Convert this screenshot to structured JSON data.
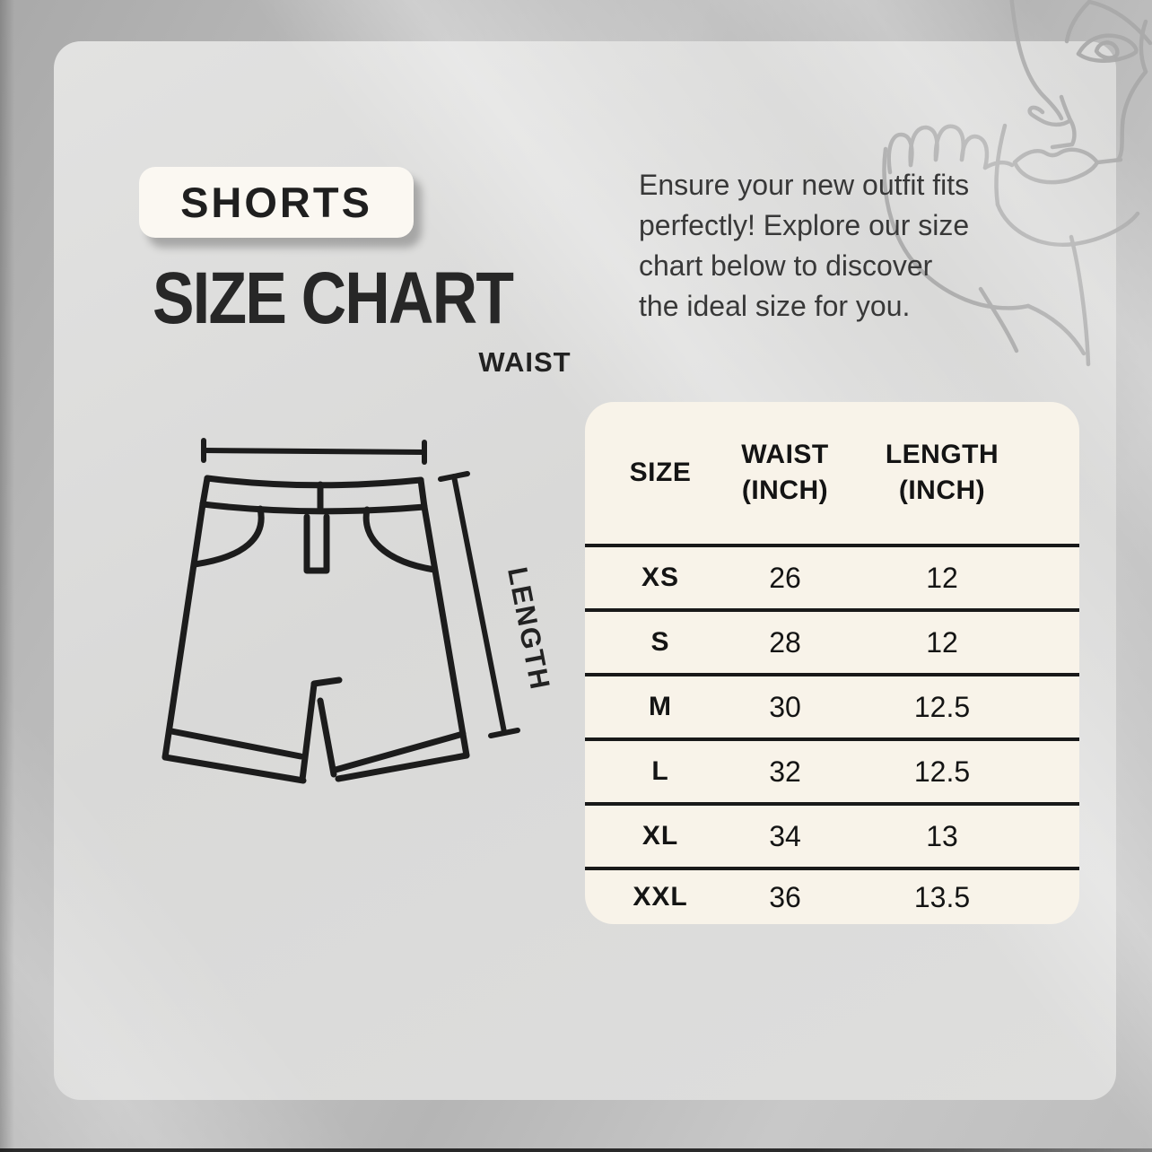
{
  "poster": {
    "tag": "SHORTS",
    "title": "SIZE CHART"
  },
  "intro_lines": [
    "Ensure your new outfit fits",
    "perfectly! Explore our size",
    "chart below to discover",
    "the ideal size for you."
  ],
  "diagram_labels": {
    "waist": "WAIST",
    "length": "LENGTH"
  },
  "size_table": {
    "headers": [
      [
        "SIZE"
      ],
      [
        "WAIST",
        "(INCH)"
      ],
      [
        "LENGTH",
        "(INCH)"
      ]
    ],
    "rows": [
      {
        "size": "XS",
        "waist": "26",
        "length": "12"
      },
      {
        "size": "S",
        "waist": "28",
        "length": "12"
      },
      {
        "size": "M",
        "waist": "30",
        "length": "12.5"
      },
      {
        "size": "L",
        "waist": "32",
        "length": "12.5"
      },
      {
        "size": "XL",
        "waist": "34",
        "length": "13"
      },
      {
        "size": "XXL",
        "waist": "36",
        "length": "13.5"
      }
    ]
  },
  "chart_data": {
    "type": "table",
    "title": "SHORTS SIZE CHART",
    "columns": [
      "SIZE",
      "WAIST (INCH)",
      "LENGTH (INCH)"
    ],
    "rows": [
      [
        "XS",
        26,
        12
      ],
      [
        "S",
        28,
        12
      ],
      [
        "M",
        30,
        12.5
      ],
      [
        "L",
        32,
        12.5
      ],
      [
        "XL",
        34,
        13
      ],
      [
        "XXL",
        36,
        13.5
      ]
    ]
  },
  "colors": {
    "outer_background": "#b9b9b9",
    "card_background": "#dcdcdb",
    "table_background": "#f8f3e9",
    "badge_background": "#fbf8f2",
    "ink": "#1c1c1c",
    "line_art": "#a9a9a9"
  }
}
